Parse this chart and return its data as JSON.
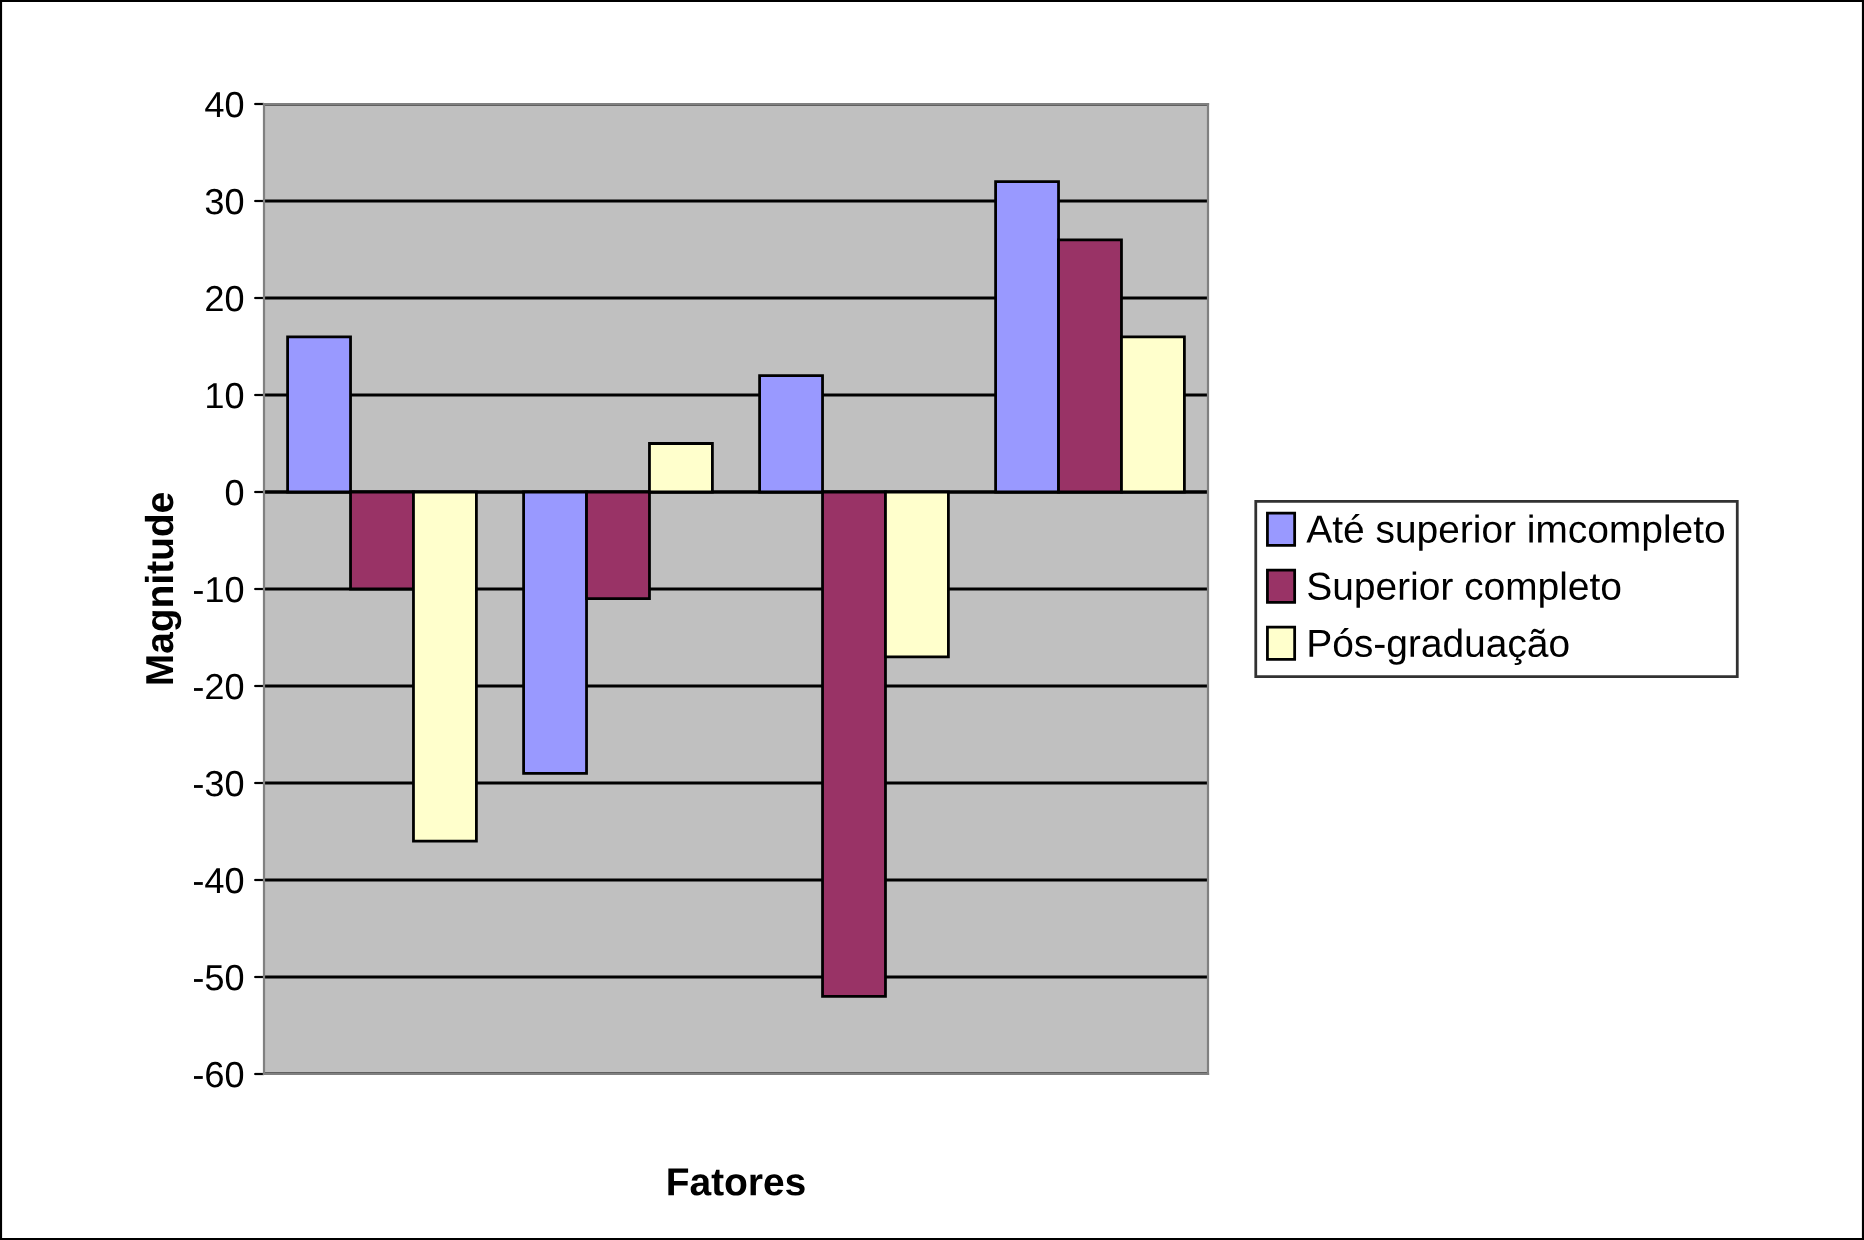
{
  "chart_data": {
    "type": "bar",
    "xlabel": "Fatores",
    "ylabel": "Magnitude",
    "categories": [
      null,
      null,
      null,
      null
    ],
    "series": [
      {
        "name": "Até superior imcompleto",
        "color": "#9999ff",
        "values": [
          16,
          -29,
          12,
          32
        ]
      },
      {
        "name": "Superior completo",
        "color": "#993366",
        "values": [
          -10,
          -11,
          -52,
          26
        ]
      },
      {
        "name": "Pós-graduação",
        "color": "#ffffcc",
        "values": [
          -36,
          5,
          -17,
          16
        ]
      }
    ],
    "ylim": [
      -60,
      40
    ],
    "yticks": [
      -60,
      -50,
      -40,
      -30,
      -20,
      -10,
      0,
      10,
      20,
      30,
      40
    ],
    "grid": "y",
    "legend": "right"
  }
}
